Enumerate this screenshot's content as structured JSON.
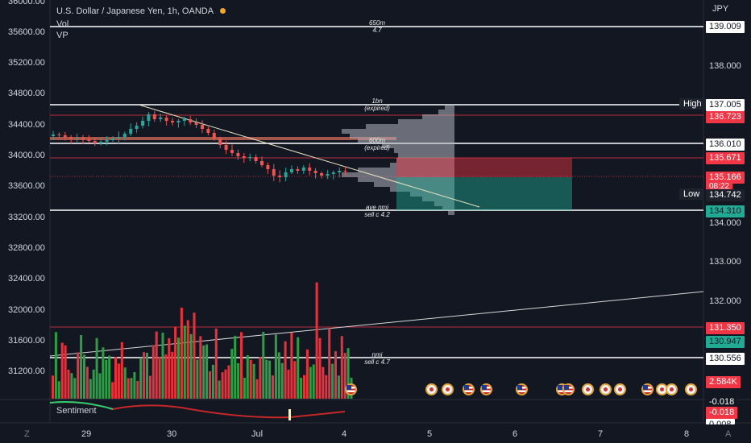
{
  "symbol": {
    "title": "U.S. Dollar / Japanese Yen, 1h, OANDA",
    "indicators": [
      "Vol",
      "VP"
    ],
    "dot_color": "#f5a623"
  },
  "currency": "JPY",
  "left_axis": [
    "36000.00",
    "35600.00",
    "35200.00",
    "34800.00",
    "34400.00",
    "34000.00",
    "33600.00",
    "33200.00",
    "32800.00",
    "32400.00",
    "32000.00",
    "31600.00",
    "31200.00"
  ],
  "right_axis": [
    "138.000",
    "134.000",
    "133.000",
    "132.000"
  ],
  "price_tags": [
    {
      "text": "139.009",
      "bg": "#ffffff",
      "fg": "#131722"
    },
    {
      "text": "137.005",
      "bg": "#ffffff",
      "fg": "#131722"
    },
    {
      "text": "136.723",
      "bg": "#f23645",
      "fg": "#ffffff"
    },
    {
      "text": "136.010",
      "bg": "#ffffff",
      "fg": "#131722"
    },
    {
      "text": "135.671",
      "bg": "#f23645",
      "fg": "#ffffff"
    },
    {
      "text": "135.166",
      "bg": "#f23645",
      "fg": "#ffffff"
    },
    {
      "text": "08:22",
      "bg": "#f23645",
      "fg": "#ffffff"
    },
    {
      "text": "134.742",
      "bg": "#1e222d",
      "fg": "#ffffff"
    },
    {
      "text": "134.310",
      "bg": "#22ab94",
      "fg": "#131722"
    },
    {
      "text": "131.350",
      "bg": "#f23645",
      "fg": "#ffffff"
    },
    {
      "text": "130.947",
      "bg": "#22ab94",
      "fg": "#131722"
    },
    {
      "text": "130.556",
      "bg": "#ffffff",
      "fg": "#131722"
    },
    {
      "text": "2.584K",
      "bg": "#f23645",
      "fg": "#ffffff"
    },
    {
      "text": "-0.018",
      "bg": "#131722",
      "fg": "#ffffff"
    },
    {
      "text": "-0.018",
      "bg": "#f23645",
      "fg": "#ffffff"
    },
    {
      "text": "0.008",
      "bg": "#ffffff",
      "fg": "#131722"
    }
  ],
  "high_label": "High",
  "low_label": "Low",
  "annotations": [
    {
      "lines": [
        "650m",
        "4.7"
      ]
    },
    {
      "lines": [
        "1bn",
        "(expired)"
      ]
    },
    {
      "lines": [
        "600m",
        "(expired)"
      ]
    },
    {
      "lines": [
        "ave nmi",
        "sell c 4.2"
      ]
    },
    {
      "lines": [
        "nmi",
        "sell c 4.7"
      ]
    }
  ],
  "x_axis": [
    "29",
    "30",
    "Jul",
    "4",
    "5",
    "6",
    "7",
    "8"
  ],
  "sentiment_label": "Sentiment",
  "corner_labels": {
    "left": "Z",
    "right": "A"
  },
  "colors": {
    "bull": "#26a69a",
    "bear": "#ef5350",
    "vol_bull": "#2e9e46",
    "vol_bear": "#e5323c",
    "bg": "#131722"
  }
}
